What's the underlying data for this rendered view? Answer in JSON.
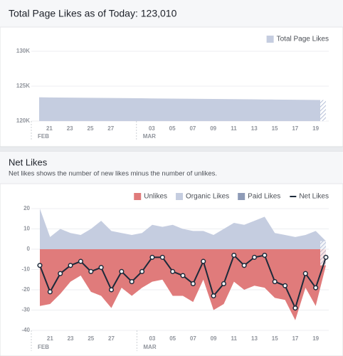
{
  "chart_data": [
    {
      "type": "area",
      "title": "Total Page Likes as of Today: 123,010",
      "categories": [
        null,
        "21",
        null,
        "23",
        null,
        "25",
        null,
        "27",
        null,
        null,
        null,
        "03",
        null,
        "05",
        null,
        "07",
        null,
        "09",
        null,
        "11",
        null,
        "13",
        null,
        "15",
        null,
        "17",
        null,
        "19",
        null
      ],
      "month_labels": [
        "FEB",
        null,
        null,
        null,
        null,
        null,
        null,
        null,
        null,
        "MAR",
        null,
        null,
        null,
        null,
        null,
        null,
        null,
        null,
        null,
        null,
        null,
        null,
        null,
        null,
        null,
        null,
        null,
        null,
        null
      ],
      "series": [
        {
          "name": "Total Page Likes",
          "color": "#c5cde0",
          "values": [
            123400,
            123386,
            123372,
            123358,
            123344,
            123330,
            123316,
            123302,
            123288,
            123274,
            123260,
            123246,
            123232,
            123218,
            123204,
            123190,
            123176,
            123162,
            123148,
            123134,
            123120,
            123106,
            123092,
            123078,
            123064,
            123050,
            123036,
            123022,
            123010
          ]
        }
      ],
      "ylim": [
        120000,
        130000
      ],
      "yticks": [
        {
          "value": 120000,
          "label": "120K"
        },
        {
          "value": 125000,
          "label": "125K"
        },
        {
          "value": 130000,
          "label": "130K"
        }
      ],
      "grid": true,
      "legend": "top-right"
    },
    {
      "type": "stacked-area-line",
      "title": "Net Likes",
      "subtitle": "Net likes shows the number of new likes minus the number of unlikes.",
      "categories": [
        null,
        "21",
        null,
        "23",
        null,
        "25",
        null,
        "27",
        null,
        null,
        null,
        "03",
        null,
        "05",
        null,
        "07",
        null,
        "09",
        null,
        "11",
        null,
        "13",
        null,
        "15",
        null,
        "17",
        null,
        "19",
        null
      ],
      "month_labels": [
        "FEB",
        null,
        null,
        null,
        null,
        null,
        null,
        null,
        null,
        "MAR",
        null,
        null,
        null,
        null,
        null,
        null,
        null,
        null,
        null,
        null,
        null,
        null,
        null,
        null,
        null,
        null,
        null,
        null,
        null
      ],
      "series": [
        {
          "name": "Unlikes",
          "color": "#e07b7b",
          "kind": "area-down",
          "values": [
            -28,
            -27,
            -22,
            -16,
            -13,
            -21,
            -23,
            -29,
            -19,
            -23,
            -19,
            -16,
            -15,
            -23,
            -23,
            -26,
            -15,
            -30,
            -27,
            -16,
            -20,
            -18,
            -19,
            -24,
            -25,
            -35,
            -19,
            -28,
            -8
          ]
        },
        {
          "name": "Organic Likes",
          "color": "#c5cde0",
          "kind": "area-up",
          "values": [
            20,
            6,
            10,
            8,
            7,
            10,
            14,
            9,
            8,
            7,
            8,
            12,
            11,
            12,
            10,
            9,
            9,
            7,
            10,
            13,
            12,
            14,
            16,
            8,
            7,
            6,
            7,
            9,
            4
          ]
        },
        {
          "name": "Paid Likes",
          "color": "#8e9bb7",
          "kind": "area-up",
          "values": [
            0,
            0,
            0,
            0,
            0,
            0,
            0,
            0,
            0,
            0,
            0,
            0,
            0,
            0,
            0,
            0,
            0,
            0,
            0,
            0,
            0,
            0,
            0,
            0,
            0,
            0,
            0,
            0,
            0
          ]
        },
        {
          "name": "Net Likes",
          "color": "#1d2a3a",
          "kind": "line",
          "values": [
            -8,
            -21,
            -12,
            -8,
            -6,
            -11,
            -9,
            -20,
            -11,
            -16,
            -11,
            -4,
            -4,
            -11,
            -13,
            -17,
            -6,
            -23,
            -17,
            -3,
            -8,
            -4,
            -3,
            -16,
            -18,
            -29,
            -12,
            -19,
            -4
          ]
        }
      ],
      "ylim": [
        -40,
        20
      ],
      "yticks": [
        -40,
        -30,
        -20,
        -10,
        0,
        10,
        20
      ],
      "grid": true,
      "legend": "top-right"
    }
  ]
}
